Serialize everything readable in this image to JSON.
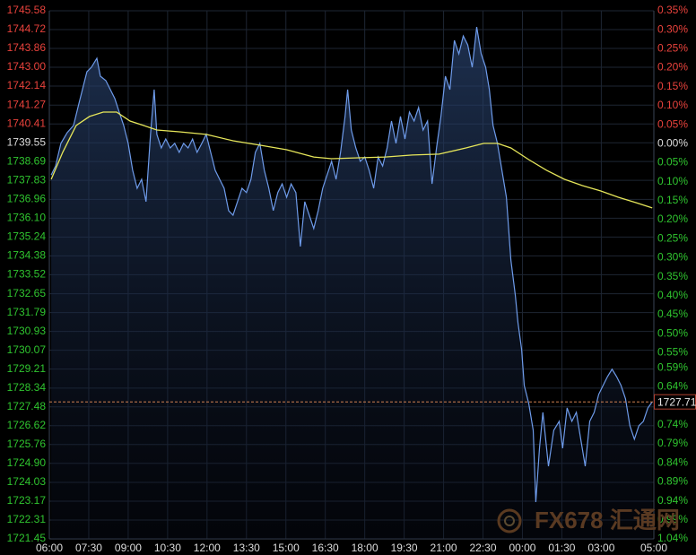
{
  "chart_data": {
    "type": "line",
    "watermark": "FX678 汇通网",
    "xlim": [
      0,
      23
    ],
    "xticks": [
      {
        "value": 0,
        "label": "06:00"
      },
      {
        "value": 1.5,
        "label": "07:30"
      },
      {
        "value": 3,
        "label": "09:00"
      },
      {
        "value": 4.5,
        "label": "10:30"
      },
      {
        "value": 6,
        "label": "12:00"
      },
      {
        "value": 7.5,
        "label": "13:30"
      },
      {
        "value": 9,
        "label": "15:00"
      },
      {
        "value": 10.5,
        "label": "16:30"
      },
      {
        "value": 12,
        "label": "18:00"
      },
      {
        "value": 13.5,
        "label": "19:30"
      },
      {
        "value": 15,
        "label": "21:00"
      },
      {
        "value": 16.5,
        "label": "22:30"
      },
      {
        "value": 18,
        "label": "00:00"
      },
      {
        "value": 19.5,
        "label": "01:30"
      },
      {
        "value": 21,
        "label": "03:00"
      },
      {
        "value": 23,
        "label": "05:00"
      }
    ],
    "ylim": [
      1721.45,
      1745.58
    ],
    "yticks": [
      1745.58,
      1744.72,
      1743.86,
      {
        "value": 1743,
        "label": "1743.00"
      },
      1742.14,
      1741.27,
      1740.41,
      1739.55,
      1738.69,
      1737.83,
      1736.96,
      {
        "value": 1736.1,
        "label": "1736.10"
      },
      1735.24,
      1734.38,
      1733.52,
      1732.65,
      1731.79,
      1730.93,
      1730.07,
      1729.21,
      1728.34,
      1727.48,
      1726.62,
      1725.76,
      {
        "value": 1724.9,
        "label": "1724.90"
      },
      1724.03,
      1723.17,
      1722.31,
      1721.45
    ],
    "y2lim": [
      0.35,
      -1.04
    ],
    "y2ticks": [
      {
        "value": 0.35,
        "label": "0.35%"
      },
      {
        "value": 0.3,
        "label": "0.30%"
      },
      {
        "value": 0.25,
        "label": "0.25%"
      },
      {
        "value": 0.2,
        "label": "0.20%"
      },
      {
        "value": 0.15,
        "label": "0.15%"
      },
      {
        "value": 0.1,
        "label": "0.10%"
      },
      {
        "value": 0.05,
        "label": "0.05%"
      },
      {
        "value": 0,
        "label": "0.00%"
      },
      {
        "value": -0.05,
        "label": "0.05%"
      },
      {
        "value": -0.1,
        "label": "0.10%"
      },
      {
        "value": -0.15,
        "label": "0.15%"
      },
      {
        "value": -0.2,
        "label": "0.20%"
      },
      {
        "value": -0.25,
        "label": "0.25%"
      },
      {
        "value": -0.3,
        "label": "0.30%"
      },
      {
        "value": -0.35,
        "label": "0.35%"
      },
      {
        "value": -0.4,
        "label": "0.40%"
      },
      {
        "value": -0.45,
        "label": "0.45%"
      },
      {
        "value": -0.5,
        "label": "0.50%"
      },
      {
        "value": -0.55,
        "label": "0.55%"
      },
      {
        "value": -0.59,
        "label": "0.59%"
      },
      {
        "value": -0.64,
        "label": "0.64%"
      },
      {
        "value": -0.69,
        "label": "0.69%"
      },
      {
        "value": -0.74,
        "label": "0.74%"
      },
      {
        "value": -0.79,
        "label": "0.79%"
      },
      {
        "value": -0.84,
        "label": "0.84%"
      },
      {
        "value": -0.89,
        "label": "0.89%"
      },
      {
        "value": -0.94,
        "label": "0.94%"
      },
      {
        "value": -0.99,
        "label": "0.99%"
      },
      {
        "value": -1.04,
        "label": "1.04%"
      }
    ],
    "grid": true,
    "up_color": "#e8423c",
    "down_color": "#2fc42f",
    "flat_color": "#dddddd",
    "series": [
      {
        "color": "#6e9bea",
        "x": [
          0.07,
          0.24,
          0.44,
          0.68,
          0.92,
          1.13,
          1.26,
          1.43,
          1.6,
          1.81,
          1.94,
          2.15,
          2.32,
          2.49,
          2.66,
          2.83,
          3,
          3.17,
          3.34,
          3.51,
          3.68,
          3.85,
          3.99,
          4.09,
          4.26,
          4.43,
          4.6,
          4.77,
          4.94,
          5.11,
          5.28,
          5.45,
          5.62,
          5.8,
          5.97,
          6.14,
          6.31,
          6.48,
          6.65,
          6.82,
          6.99,
          7.16,
          7.33,
          7.5,
          7.67,
          7.84,
          8.01,
          8.18,
          8.35,
          8.52,
          8.69,
          8.86,
          9.03,
          9.2,
          9.38,
          9.55,
          9.72,
          9.89,
          10.06,
          10.23,
          10.4,
          10.57,
          10.74,
          10.91,
          11.08,
          11.25,
          11.35,
          11.49,
          11.66,
          11.83,
          12,
          12.17,
          12.34,
          12.51,
          12.68,
          12.85,
          13.02,
          13.19,
          13.36,
          13.53,
          13.7,
          13.88,
          14.05,
          14.22,
          14.39,
          14.56,
          14.73,
          14.9,
          15.07,
          15.24,
          15.41,
          15.58,
          15.75,
          15.92,
          16.09,
          16.26,
          16.43,
          16.6,
          16.74,
          16.88,
          17.05,
          17.22,
          17.39,
          17.56,
          17.73,
          17.83,
          17.97,
          18.07,
          18.24,
          18.41,
          18.51,
          18.65,
          18.78,
          18.99,
          19.19,
          19.4,
          19.53,
          19.7,
          19.88,
          20.05,
          20.22,
          20.39,
          20.56,
          20.73,
          20.9,
          21.07,
          21.24,
          21.41,
          21.58,
          21.75,
          21.92,
          22.09,
          22.26,
          22.43,
          22.6,
          22.77,
          22.94
        ],
        "values": [
          1738.08,
          1738.49,
          1739.52,
          1740.01,
          1740.34,
          1741.36,
          1741.98,
          1742.79,
          1743.0,
          1743.41,
          1742.59,
          1742.39,
          1741.98,
          1741.57,
          1740.95,
          1740.34,
          1739.52,
          1738.29,
          1737.47,
          1737.88,
          1736.86,
          1739.93,
          1741.98,
          1739.93,
          1739.31,
          1739.72,
          1739.31,
          1739.52,
          1739.11,
          1739.52,
          1739.31,
          1739.72,
          1739.11,
          1739.52,
          1739.93,
          1739.11,
          1738.29,
          1737.88,
          1737.47,
          1736.45,
          1736.24,
          1736.86,
          1737.47,
          1737.27,
          1737.88,
          1739.11,
          1739.52,
          1738.29,
          1737.47,
          1736.45,
          1737.27,
          1737.67,
          1737.06,
          1737.67,
          1737.27,
          1734.81,
          1736.86,
          1736.24,
          1735.63,
          1736.45,
          1737.47,
          1738.08,
          1738.7,
          1737.88,
          1739.11,
          1740.75,
          1741.98,
          1740.13,
          1739.31,
          1738.7,
          1738.9,
          1738.29,
          1737.47,
          1738.9,
          1738.49,
          1739.31,
          1740.54,
          1739.52,
          1740.75,
          1739.72,
          1740.95,
          1740.54,
          1741.16,
          1740.13,
          1740.54,
          1737.67,
          1739.31,
          1740.75,
          1742.59,
          1741.98,
          1744.23,
          1743.61,
          1744.43,
          1744.02,
          1743.0,
          1744.84,
          1743.61,
          1743.0,
          1741.98,
          1740.34,
          1739.52,
          1738.29,
          1737.06,
          1734.19,
          1732.56,
          1731.33,
          1730.1,
          1728.46,
          1727.64,
          1726.41,
          1723.13,
          1725.59,
          1727.23,
          1724.77,
          1726.41,
          1726.82,
          1725.59,
          1727.43,
          1726.82,
          1727.23,
          1726.0,
          1724.77,
          1726.82,
          1727.23,
          1728.05,
          1728.46,
          1728.87,
          1729.2,
          1728.87,
          1728.46,
          1727.85,
          1726.62,
          1726.0,
          1726.62,
          1726.82,
          1727.43,
          1727.71
        ]
      },
      {
        "color": "#e6e65a",
        "x": [
          0.07,
          0.51,
          1.02,
          1.53,
          2.05,
          2.56,
          3.07,
          3.58,
          4.09,
          4.94,
          5.97,
          6.99,
          8.01,
          9.03,
          10.06,
          10.74,
          11.76,
          12.78,
          13.81,
          14.83,
          15.85,
          16.53,
          17.05,
          17.56,
          18.24,
          18.92,
          19.6,
          20.28,
          20.97,
          21.65,
          22.33,
          22.94
        ],
        "values": [
          1737.88,
          1739.11,
          1740.34,
          1740.75,
          1740.95,
          1740.95,
          1740.54,
          1740.34,
          1740.13,
          1740.05,
          1739.93,
          1739.64,
          1739.44,
          1739.23,
          1738.9,
          1738.82,
          1738.86,
          1738.9,
          1738.99,
          1739.03,
          1739.31,
          1739.52,
          1739.52,
          1739.31,
          1738.78,
          1738.29,
          1737.88,
          1737.59,
          1737.35,
          1737.06,
          1736.81,
          1736.57
        ]
      }
    ]
  }
}
